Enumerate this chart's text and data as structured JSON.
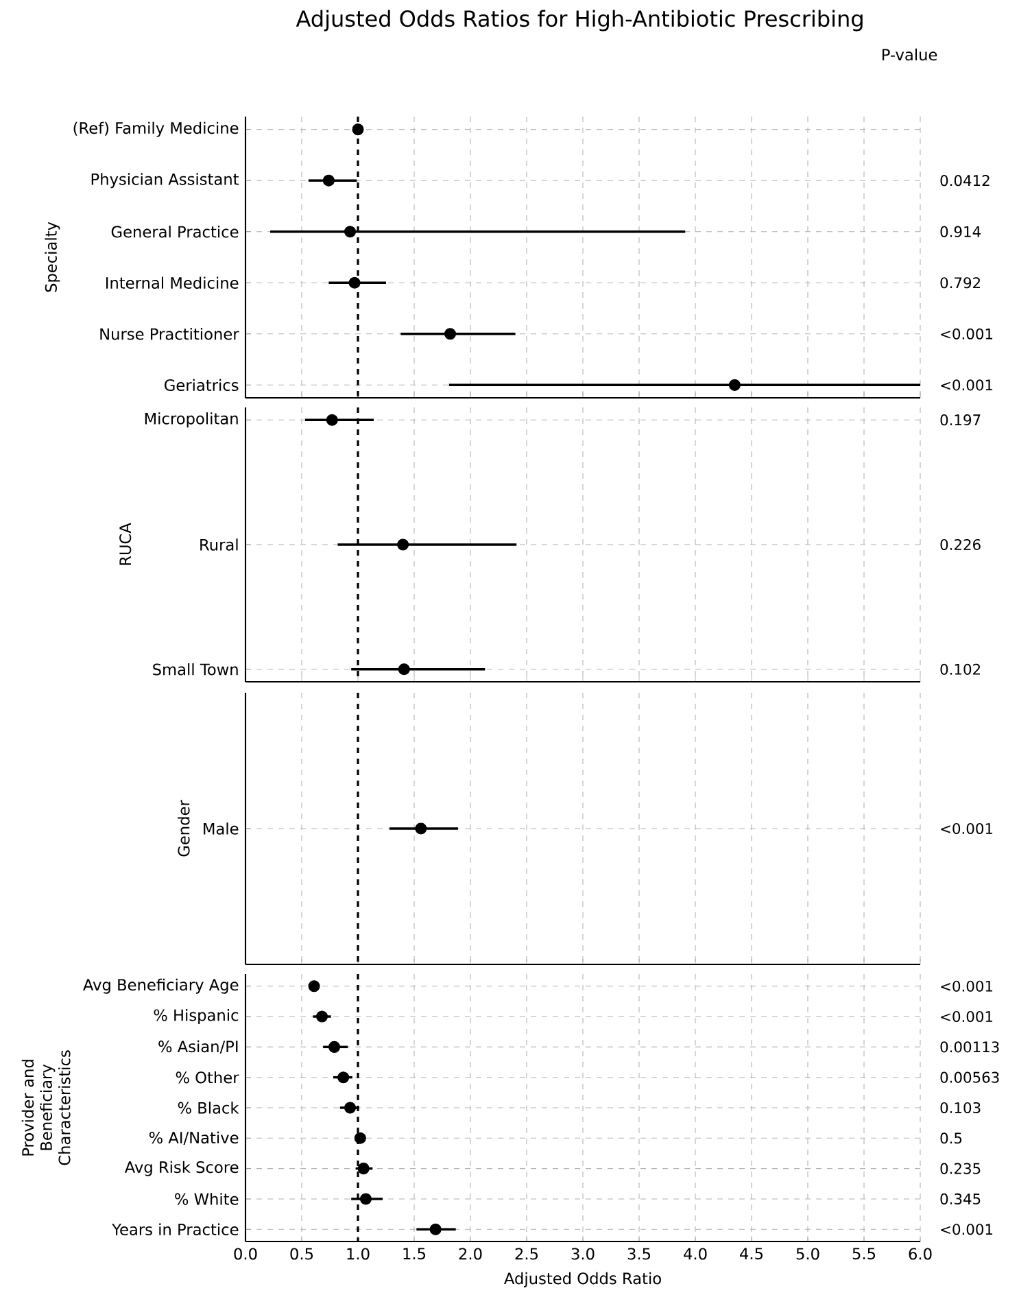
{
  "chart_data": [
    {
      "type": "scatter",
      "orientation": "horizontal",
      "title": "Adjusted Odds Ratios for High-Antibiotic Prescribing",
      "ylabel": "Specialty",
      "categories": [
        "(Ref) Family Medicine",
        "Physician Assistant",
        "General Practice",
        "Internal Medicine",
        "Nurse Practitioner",
        "Geriatrics"
      ],
      "values": [
        1.0,
        0.74,
        0.93,
        0.97,
        1.82,
        4.35
      ],
      "errors": [
        null,
        [
          0.56,
          0.99
        ],
        [
          0.22,
          3.91
        ],
        [
          0.74,
          1.25
        ],
        [
          1.38,
          2.4
        ],
        [
          1.81,
          6.0
        ]
      ],
      "color": "#000000",
      "grid": true,
      "tick_labels": "y",
      "xlim": [
        0,
        6
      ],
      "xticks": [
        {
          "value": 0,
          "label": null
        },
        {
          "value": 0.5,
          "label": null
        },
        {
          "value": 1,
          "label": null
        },
        {
          "value": 1.5,
          "label": null
        },
        {
          "value": 2,
          "label": null
        },
        {
          "value": 2.5,
          "label": null
        },
        {
          "value": 3,
          "label": null
        },
        {
          "value": 3.5,
          "label": null
        },
        {
          "value": 4,
          "label": null
        },
        {
          "value": 4.5,
          "label": null
        },
        {
          "value": 5,
          "label": null
        },
        {
          "value": 5.5,
          "label": null
        },
        {
          "value": 6,
          "label": null
        }
      ],
      "ref_lines": [
        {
          "axis": "x",
          "value": 1,
          "line_style": "dashed",
          "color": "#000000"
        }
      ],
      "annotations": [
        "P-value",
        "0.0412",
        "0.914",
        "0.792",
        "<0.001",
        "<0.001"
      ]
    },
    {
      "type": "scatter",
      "orientation": "horizontal",
      "ylabel": "RUCA",
      "categories": [
        "Micropolitan",
        "Rural",
        "Small Town"
      ],
      "values": [
        0.77,
        1.4,
        1.41
      ],
      "errors": [
        [
          0.53,
          1.14
        ],
        [
          0.82,
          2.41
        ],
        [
          0.94,
          2.13
        ]
      ],
      "color": "#000000",
      "grid": true,
      "tick_labels": "y",
      "xlim": [
        0,
        6
      ],
      "xticks": [
        {
          "value": 0,
          "label": null
        },
        {
          "value": 0.5,
          "label": null
        },
        {
          "value": 1,
          "label": null
        },
        {
          "value": 1.5,
          "label": null
        },
        {
          "value": 2,
          "label": null
        },
        {
          "value": 2.5,
          "label": null
        },
        {
          "value": 3,
          "label": null
        },
        {
          "value": 3.5,
          "label": null
        },
        {
          "value": 4,
          "label": null
        },
        {
          "value": 4.5,
          "label": null
        },
        {
          "value": 5,
          "label": null
        },
        {
          "value": 5.5,
          "label": null
        },
        {
          "value": 6,
          "label": null
        }
      ],
      "ref_lines": [
        {
          "axis": "x",
          "value": 1,
          "line_style": "dashed",
          "color": "#000000"
        }
      ],
      "annotations": [
        "0.197",
        "0.226",
        "0.102"
      ]
    },
    {
      "type": "scatter",
      "orientation": "horizontal",
      "ylabel": "Gender",
      "categories": [
        "Male"
      ],
      "values": [
        1.56
      ],
      "errors": [
        [
          1.28,
          1.89
        ]
      ],
      "color": "#000000",
      "grid": true,
      "tick_labels": "y",
      "xlim": [
        0,
        6
      ],
      "xticks": [
        {
          "value": 0,
          "label": null
        },
        {
          "value": 0.5,
          "label": null
        },
        {
          "value": 1,
          "label": null
        },
        {
          "value": 1.5,
          "label": null
        },
        {
          "value": 2,
          "label": null
        },
        {
          "value": 2.5,
          "label": null
        },
        {
          "value": 3,
          "label": null
        },
        {
          "value": 3.5,
          "label": null
        },
        {
          "value": 4,
          "label": null
        },
        {
          "value": 4.5,
          "label": null
        },
        {
          "value": 5,
          "label": null
        },
        {
          "value": 5.5,
          "label": null
        },
        {
          "value": 6,
          "label": null
        }
      ],
      "ref_lines": [
        {
          "axis": "x",
          "value": 1,
          "line_style": "dashed",
          "color": "#000000"
        }
      ],
      "annotations": [
        "<0.001"
      ]
    },
    {
      "type": "scatter",
      "orientation": "horizontal",
      "ylabel": "Provider and Beneficiary Characteristics",
      "xlabel": "Adjusted Odds Ratio",
      "categories": [
        "Avg Beneficiary Age",
        "% Hispanic",
        "% Asian/PI",
        "% Other",
        "% Black",
        "% AI/Native",
        "Avg Risk Score",
        "% White",
        "Years in Practice"
      ],
      "values": [
        0.61,
        0.68,
        0.79,
        0.87,
        0.93,
        1.02,
        1.05,
        1.07,
        1.69
      ],
      "errors": [
        null,
        [
          0.6,
          0.76
        ],
        [
          0.69,
          0.91
        ],
        [
          0.78,
          0.95
        ],
        [
          0.84,
          1.01
        ],
        [
          0.98,
          1.07
        ],
        [
          0.98,
          1.13
        ],
        [
          0.94,
          1.22
        ],
        [
          1.52,
          1.87
        ]
      ],
      "color": "#000000",
      "grid": true,
      "xlim": [
        0,
        6
      ],
      "xticks": [
        {
          "value": 0,
          "label": "0.0"
        },
        {
          "value": 0.5,
          "label": "0.5"
        },
        {
          "value": 1,
          "label": "1.0"
        },
        {
          "value": 1.5,
          "label": "1.5"
        },
        {
          "value": 2,
          "label": "2.0"
        },
        {
          "value": 2.5,
          "label": "2.5"
        },
        {
          "value": 3,
          "label": "3.0"
        },
        {
          "value": 3.5,
          "label": "3.5"
        },
        {
          "value": 4,
          "label": "4.0"
        },
        {
          "value": 4.5,
          "label": "4.5"
        },
        {
          "value": 5,
          "label": "5.0"
        },
        {
          "value": 5.5,
          "label": "5.5"
        },
        {
          "value": 6,
          "label": "6.0"
        }
      ],
      "ref_lines": [
        {
          "axis": "x",
          "value": 1,
          "line_style": "dashed",
          "color": "#000000"
        }
      ],
      "annotations": [
        "<0.001",
        "<0.001",
        "0.00113",
        "0.00563",
        "0.103",
        "0.5",
        "0.235",
        "0.345",
        "<0.001"
      ]
    }
  ]
}
